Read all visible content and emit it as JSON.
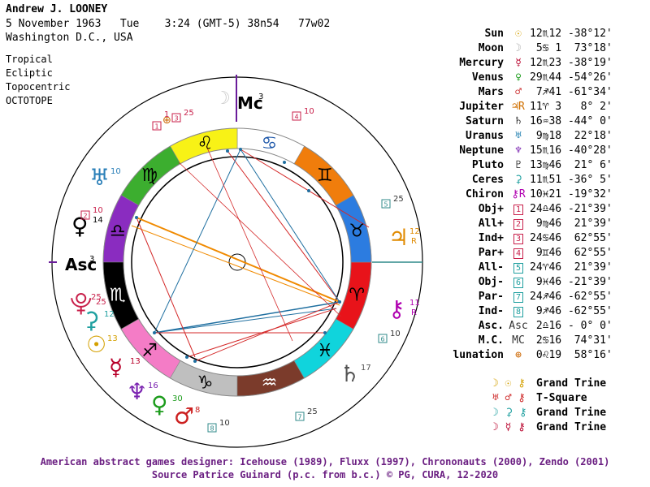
{
  "header": {
    "name": "Andrew J. LOONEY",
    "line2": "5 November 1963   Tue    3:24 (GMT-5) 38n54   77w02",
    "line3": "Washington D.C., USA"
  },
  "system": [
    "Tropical",
    "Ecliptic",
    "Topocentric",
    "OCTOTOPE"
  ],
  "wheel": {
    "signs": [
      {
        "name": "Aries",
        "glyph": "♈",
        "color": "#e8131a"
      },
      {
        "name": "Taurus",
        "glyph": "♉",
        "color": "#2c7ce0"
      },
      {
        "name": "Gemini",
        "glyph": "♊",
        "color": "#f07d0c"
      },
      {
        "name": "Cancer",
        "glyph": "♋",
        "color": "#ffffff"
      },
      {
        "name": "Leo",
        "glyph": "♌",
        "color": "#f8f216"
      },
      {
        "name": "Virgo",
        "glyph": "♍",
        "color": "#3cae2f"
      },
      {
        "name": "Libra",
        "glyph": "♎",
        "color": "#8a2cc0"
      },
      {
        "name": "Scorpio",
        "glyph": "♏",
        "color": "#000000"
      },
      {
        "name": "Sagittarius",
        "glyph": "♐",
        "color": "#f47cc6"
      },
      {
        "name": "Capricorn",
        "glyph": "♑",
        "color": "#bfbfbf"
      },
      {
        "name": "Aquarius",
        "glyph": "♒",
        "color": "#7b3b2b"
      },
      {
        "name": "Pisces",
        "glyph": "♓",
        "color": "#10d4dc"
      }
    ],
    "asc_label": "Asc",
    "asc_sup": "3",
    "mc_label": "Mc",
    "mc_sup": "3",
    "outer_labels": [
      {
        "glyph": "♅",
        "deg": "10",
        "color": "#2a7fb8"
      },
      {
        "glyph": "♀",
        "deg": "14",
        "color": "#000000"
      },
      {
        "glyph": "♃",
        "deg": "12",
        "sub": "R",
        "color": "#e08a00"
      },
      {
        "glyph": "♄",
        "deg": "17",
        "color": "#555555"
      },
      {
        "glyph": "☉",
        "deg": "13",
        "color": "#d4a000"
      },
      {
        "glyph": "☿",
        "deg": "13",
        "color": "#b8002a"
      },
      {
        "glyph": "♆",
        "deg": "16",
        "color": "#7a22b0"
      },
      {
        "glyph": "♀",
        "deg": "30",
        "color": "#1c9c1c"
      },
      {
        "glyph": "♂",
        "deg": "8",
        "color": "#cc2020"
      },
      {
        "glyph": "⚷",
        "deg": "11",
        "sub": "R",
        "color": "#b000b0"
      },
      {
        "glyph": "⚳",
        "deg": "12",
        "color": "#20a0a0"
      },
      {
        "glyph": "⯓",
        "deg": "25",
        "color": "#c81f4a"
      }
    ],
    "point_boxes": [
      {
        "n": "1",
        "deg": "",
        "color": "#c81f4a"
      },
      {
        "n": "2",
        "deg": "10",
        "color": "#c81f4a"
      },
      {
        "n": "3",
        "deg": "25",
        "color": "#c81f4a"
      },
      {
        "n": "4",
        "deg": "10",
        "color": "#c81f4a"
      },
      {
        "n": "5",
        "deg": "25",
        "color": "#2f8a8a"
      },
      {
        "n": "6",
        "deg": "10",
        "color": "#2f8a8a"
      },
      {
        "n": "7",
        "deg": "25",
        "color": "#2f8a8a"
      },
      {
        "n": "8",
        "deg": "10",
        "color": "#2f8a8a"
      }
    ],
    "lunation_deg": "1",
    "asc_side_deg": "25"
  },
  "planets": [
    {
      "name": "Sun",
      "glyph": "☉",
      "deg": "12",
      "sign": "♏",
      "min": "12",
      "lat": "-38°12'",
      "cls": "g1"
    },
    {
      "name": "Moon",
      "glyph": "☽",
      "deg": "5",
      "sign": "♋",
      "min": " 1",
      "lat": "73°18'",
      "cls": "g2"
    },
    {
      "name": "Mercury",
      "glyph": "☿",
      "deg": "12",
      "sign": "♏",
      "min": "23",
      "lat": "-38°19'",
      "cls": "g3"
    },
    {
      "name": "Venus",
      "glyph": "♀",
      "deg": "29",
      "sign": "♏",
      "min": "44",
      "lat": "-54°26'",
      "cls": "g4"
    },
    {
      "name": "Mars",
      "glyph": "♂",
      "deg": "7",
      "sign": "♐",
      "min": "41",
      "lat": "-61°34'",
      "cls": "g5"
    },
    {
      "name": "Jupiter",
      "glyph": "♃R",
      "deg": "11",
      "sign": "♈",
      "min": " 3",
      "lat": "8° 2'",
      "cls": "g6"
    },
    {
      "name": "Saturn",
      "glyph": "♄",
      "deg": "16",
      "sign": "♒",
      "min": "38",
      "lat": "-44° 0'",
      "cls": "g7"
    },
    {
      "name": "Uranus",
      "glyph": "♅",
      "deg": "9",
      "sign": "♍",
      "min": "18",
      "lat": "22°18'",
      "cls": "g8"
    },
    {
      "name": "Neptune",
      "glyph": "♆",
      "deg": "15",
      "sign": "♏",
      "min": "16",
      "lat": "-40°28'",
      "cls": "g9"
    },
    {
      "name": "Pluto",
      "glyph": "♇",
      "deg": "13",
      "sign": "♍",
      "min": "46",
      "lat": "21° 6'",
      "cls": "g10"
    },
    {
      "name": "Ceres",
      "glyph": "⚳",
      "deg": "11",
      "sign": "♏",
      "min": "51",
      "lat": "-36° 5'",
      "cls": "g11"
    },
    {
      "name": "Chiron",
      "glyph": "⚷R",
      "deg": "10",
      "sign": "♓",
      "min": "21",
      "lat": "-19°32'",
      "cls": "g12"
    },
    {
      "name": "Obj+",
      "glyph": "1",
      "deg": "24",
      "sign": "♎",
      "min": "46",
      "lat": "-21°39'",
      "cls": "gb"
    },
    {
      "name": "All+",
      "glyph": "2",
      "deg": "9",
      "sign": "♍",
      "min": "46",
      "lat": "21°39'",
      "cls": "gb"
    },
    {
      "name": "Ind+",
      "glyph": "3",
      "deg": "24",
      "sign": "♋",
      "min": "46",
      "lat": "62°55'",
      "cls": "gb"
    },
    {
      "name": "Par+",
      "glyph": "4",
      "deg": "9",
      "sign": "♊",
      "min": "46",
      "lat": "62°55'",
      "cls": "gb"
    },
    {
      "name": "All-",
      "glyph": "5",
      "deg": "24",
      "sign": "♈",
      "min": "46",
      "lat": "21°39'",
      "cls": "g11"
    },
    {
      "name": "Obj-",
      "glyph": "6",
      "deg": "9",
      "sign": "♓",
      "min": "46",
      "lat": "-21°39'",
      "cls": "g11"
    },
    {
      "name": "Par-",
      "glyph": "7",
      "deg": "24",
      "sign": "♐",
      "min": "46",
      "lat": "-62°55'",
      "cls": "g11"
    },
    {
      "name": "Ind-",
      "glyph": "8",
      "deg": "9",
      "sign": "♐",
      "min": "46",
      "lat": "-62°55'",
      "cls": "g11"
    },
    {
      "name": "Asc.",
      "glyph": "Asc",
      "deg": "2",
      "sign": "♎",
      "min": "16",
      "lat": "- 0° 0'",
      "cls": "g7"
    },
    {
      "name": "M.C.",
      "glyph": "MC",
      "deg": "2",
      "sign": "♋",
      "min": "16",
      "lat": "74°31'",
      "cls": "g7"
    },
    {
      "name": "lunation",
      "glyph": "⊕",
      "deg": "0",
      "sign": "♌",
      "min": "19",
      "lat": "58°16'",
      "cls": "gc"
    }
  ],
  "aspects": [
    {
      "glyphs": "☽ ☉ ⚷",
      "label": "Grand Trine",
      "color": "#d4a000"
    },
    {
      "glyphs": "♅ ♂ ⚷",
      "label": "T-Square",
      "color": "#cc2020"
    },
    {
      "glyphs": "☽ ⚳ ⚷",
      "label": "Grand Trine",
      "color": "#20a0a0"
    },
    {
      "glyphs": "☽ ☿ ⚷",
      "label": "Grand Trine",
      "color": "#b8002a"
    }
  ],
  "footer": {
    "line1": "American abstract games designer: Icehouse (1989), Fluxx (1997), Chrononauts (2000), Zendo (2001)",
    "line2": "Source Patrice Guinard (p.c. from b.c.) © PG, CURA, 12-2020"
  }
}
